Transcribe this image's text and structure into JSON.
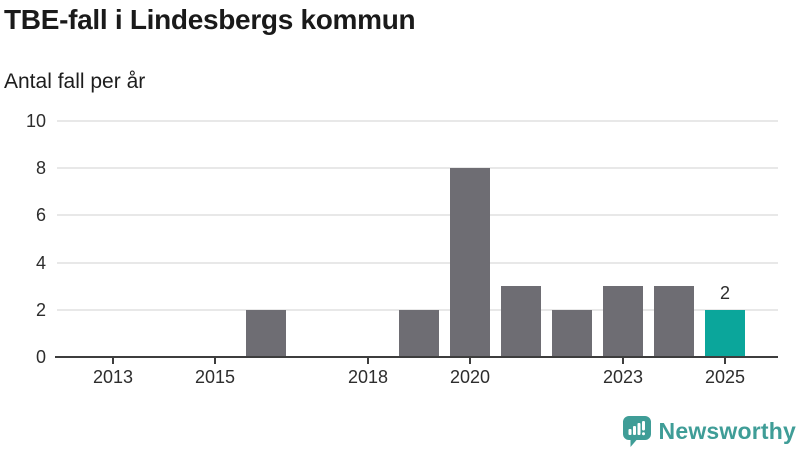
{
  "header": {
    "title": "TBE-fall i Lindesbergs kommun",
    "subtitle": "Antal fall per år"
  },
  "chart_data": {
    "type": "bar",
    "title": "TBE-fall i Lindesbergs kommun",
    "ylabel": "Antal fall per år",
    "xlabel": "",
    "categories": [
      2012,
      2013,
      2014,
      2015,
      2016,
      2017,
      2018,
      2019,
      2020,
      2021,
      2022,
      2023,
      2024,
      2025
    ],
    "values": [
      0,
      0,
      0,
      0,
      2,
      0,
      0,
      2,
      8,
      3,
      2,
      3,
      3,
      2
    ],
    "highlight": {
      "category": 2025,
      "label": "2"
    },
    "x_ticks": [
      2013,
      2015,
      2018,
      2020,
      2023,
      2025
    ],
    "y_ticks": [
      0,
      2,
      4,
      6,
      8,
      10
    ],
    "ylim": [
      0,
      10
    ],
    "grid": "horizontal",
    "legend": "none",
    "colors": {
      "bar": "#6e6d73",
      "highlight": "#0ba69b",
      "gridline": "#e8e8e8",
      "axis": "#3d3d3d",
      "tick_text": "#2d2d2d"
    }
  },
  "footer": {
    "brand": "Newsworthy",
    "brand_color": "#3f9d97",
    "icon": "newsworthy-bar-chart-bubble-icon"
  }
}
